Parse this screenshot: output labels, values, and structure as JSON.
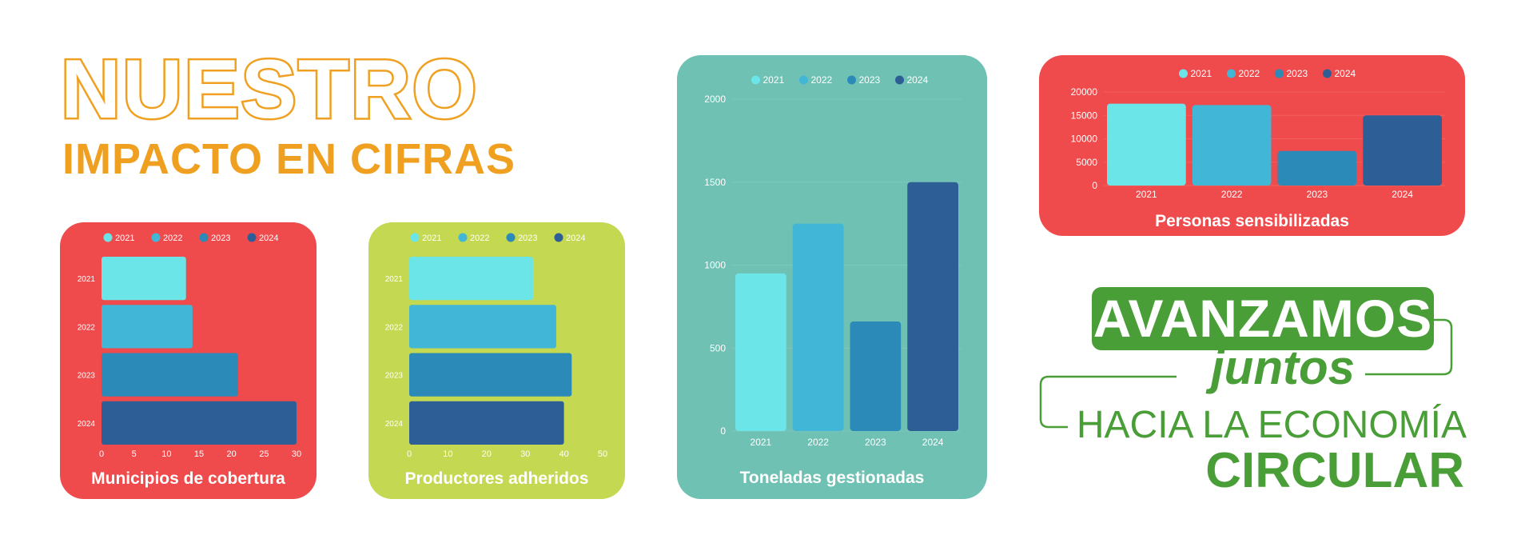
{
  "header": {
    "title": "NUESTRO",
    "subtitle": "IMPACTO EN CIFRAS"
  },
  "slogan": {
    "line1": "AVANZAMOS",
    "line2": "juntos",
    "line3": "HACIA LA ECONOMÍA",
    "line4": "CIRCULAR"
  },
  "colors": {
    "series": [
      "#6BE5E8",
      "#41B6D6",
      "#2C8AB8",
      "#2D5F96"
    ],
    "orange": "#F0A020",
    "green": "#4A9E37"
  },
  "chart_data": [
    {
      "type": "bar",
      "orientation": "horizontal",
      "title": "Municipios de cobertura",
      "background": "#EF4B4D",
      "legend": [
        "2021",
        "2022",
        "2023",
        "2024"
      ],
      "legend_position": "top",
      "categories": [
        "2021",
        "2022",
        "2023",
        "2024"
      ],
      "values": [
        13,
        14,
        21,
        30
      ],
      "xlim": [
        0,
        30
      ],
      "ticks": [
        0,
        5,
        10,
        15,
        20,
        25,
        30
      ],
      "tick_labels": [
        "0",
        "5",
        "10",
        "15",
        "20",
        "25",
        "30"
      ]
    },
    {
      "type": "bar",
      "orientation": "horizontal",
      "title": "Productores adheridos",
      "background": "#C4D852",
      "legend": [
        "2021",
        "2022",
        "2023",
        "2024"
      ],
      "legend_position": "top",
      "categories": [
        "2021",
        "2022",
        "2023",
        "2024"
      ],
      "values": [
        32,
        38,
        42,
        40
      ],
      "xlim": [
        0,
        50
      ],
      "ticks": [
        0,
        10,
        20,
        30,
        40,
        50
      ],
      "tick_labels": [
        "0",
        "10",
        "20",
        "30",
        "40",
        "50"
      ]
    },
    {
      "type": "bar",
      "orientation": "vertical",
      "title": "Toneladas gestionadas",
      "background": "#6EC1B3",
      "legend": [
        "2021",
        "2022",
        "2023",
        "2024"
      ],
      "legend_position": "top",
      "categories": [
        "2021",
        "2022",
        "2023",
        "2024"
      ],
      "values": [
        950,
        1250,
        660,
        1500
      ],
      "ylim": [
        0,
        2000
      ],
      "ticks": [
        0,
        500,
        1000,
        1500,
        2000
      ],
      "tick_labels": [
        "0",
        "500",
        "1000",
        "1500",
        "2000"
      ]
    },
    {
      "type": "bar",
      "orientation": "vertical",
      "title": "Personas sensibilizadas",
      "background": "#EF4B4D",
      "legend": [
        "2021",
        "2022",
        "2023",
        "2024"
      ],
      "legend_position": "top",
      "categories": [
        "2021",
        "2022",
        "2023",
        "2024"
      ],
      "values": [
        17500,
        17200,
        7400,
        15000
      ],
      "ylim": [
        0,
        20000
      ],
      "ticks": [
        0,
        5000,
        10000,
        15000,
        20000
      ],
      "tick_labels": [
        "0",
        "5000",
        "10000",
        "15000",
        "20000"
      ]
    }
  ]
}
